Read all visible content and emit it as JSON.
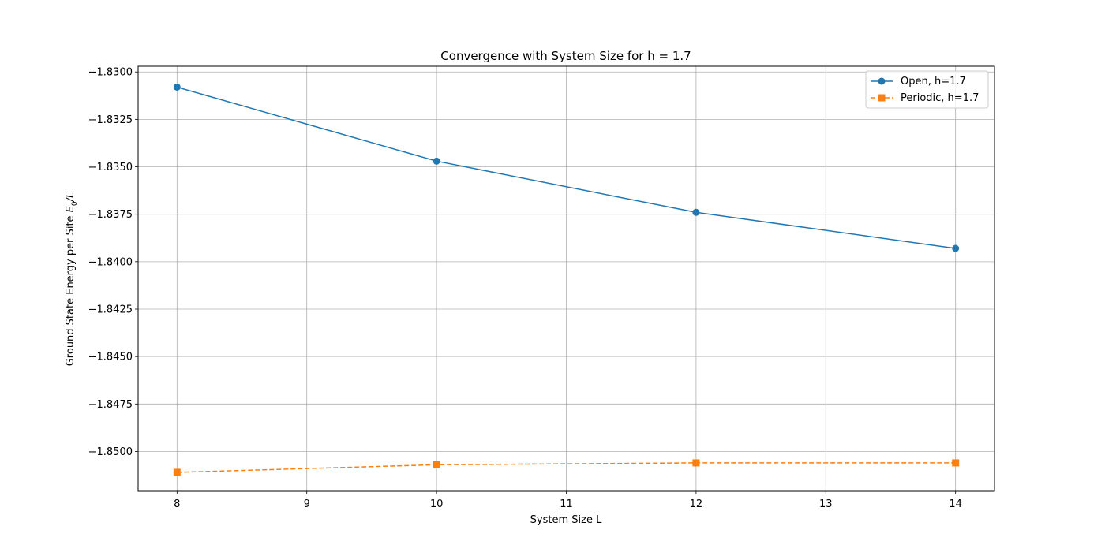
{
  "chart_data": {
    "type": "line",
    "title": "Convergence with System Size for h = 1.7",
    "xlabel": "System Size L",
    "ylabel": "Ground State Energy per Site E0/L",
    "ylabel_main": "Ground State Energy per Site ",
    "ylabel_E": "E",
    "ylabel_sub": "0",
    "ylabel_tail": "/L",
    "xlim": [
      7.7,
      14.3
    ],
    "ylim": [
      -1.8521,
      -1.8297
    ],
    "xticks": [
      8,
      9,
      10,
      11,
      12,
      13,
      14
    ],
    "xtick_labels": [
      "8",
      "9",
      "10",
      "11",
      "12",
      "13",
      "14"
    ],
    "yticks": [
      -1.83,
      -1.8325,
      -1.835,
      -1.8375,
      -1.84,
      -1.8425,
      -1.845,
      -1.8475,
      -1.85
    ],
    "ytick_labels": [
      "−1.8300",
      "−1.8325",
      "−1.8350",
      "−1.8375",
      "−1.8400",
      "−1.8425",
      "−1.8450",
      "−1.8475",
      "−1.8500"
    ],
    "grid": true,
    "legend_position": "top-right",
    "series": [
      {
        "name": "Open, h=1.7",
        "color": "#1f77b4",
        "linestyle": "solid",
        "marker": "circle",
        "x": [
          8,
          10,
          12,
          14
        ],
        "y": [
          -1.8308,
          -1.8347,
          -1.8374,
          -1.8393
        ]
      },
      {
        "name": "Periodic, h=1.7",
        "color": "#ff7f0e",
        "linestyle": "dashed",
        "marker": "square",
        "x": [
          8,
          10,
          12,
          14
        ],
        "y": [
          -1.8511,
          -1.8507,
          -1.8506,
          -1.8506
        ]
      }
    ]
  }
}
